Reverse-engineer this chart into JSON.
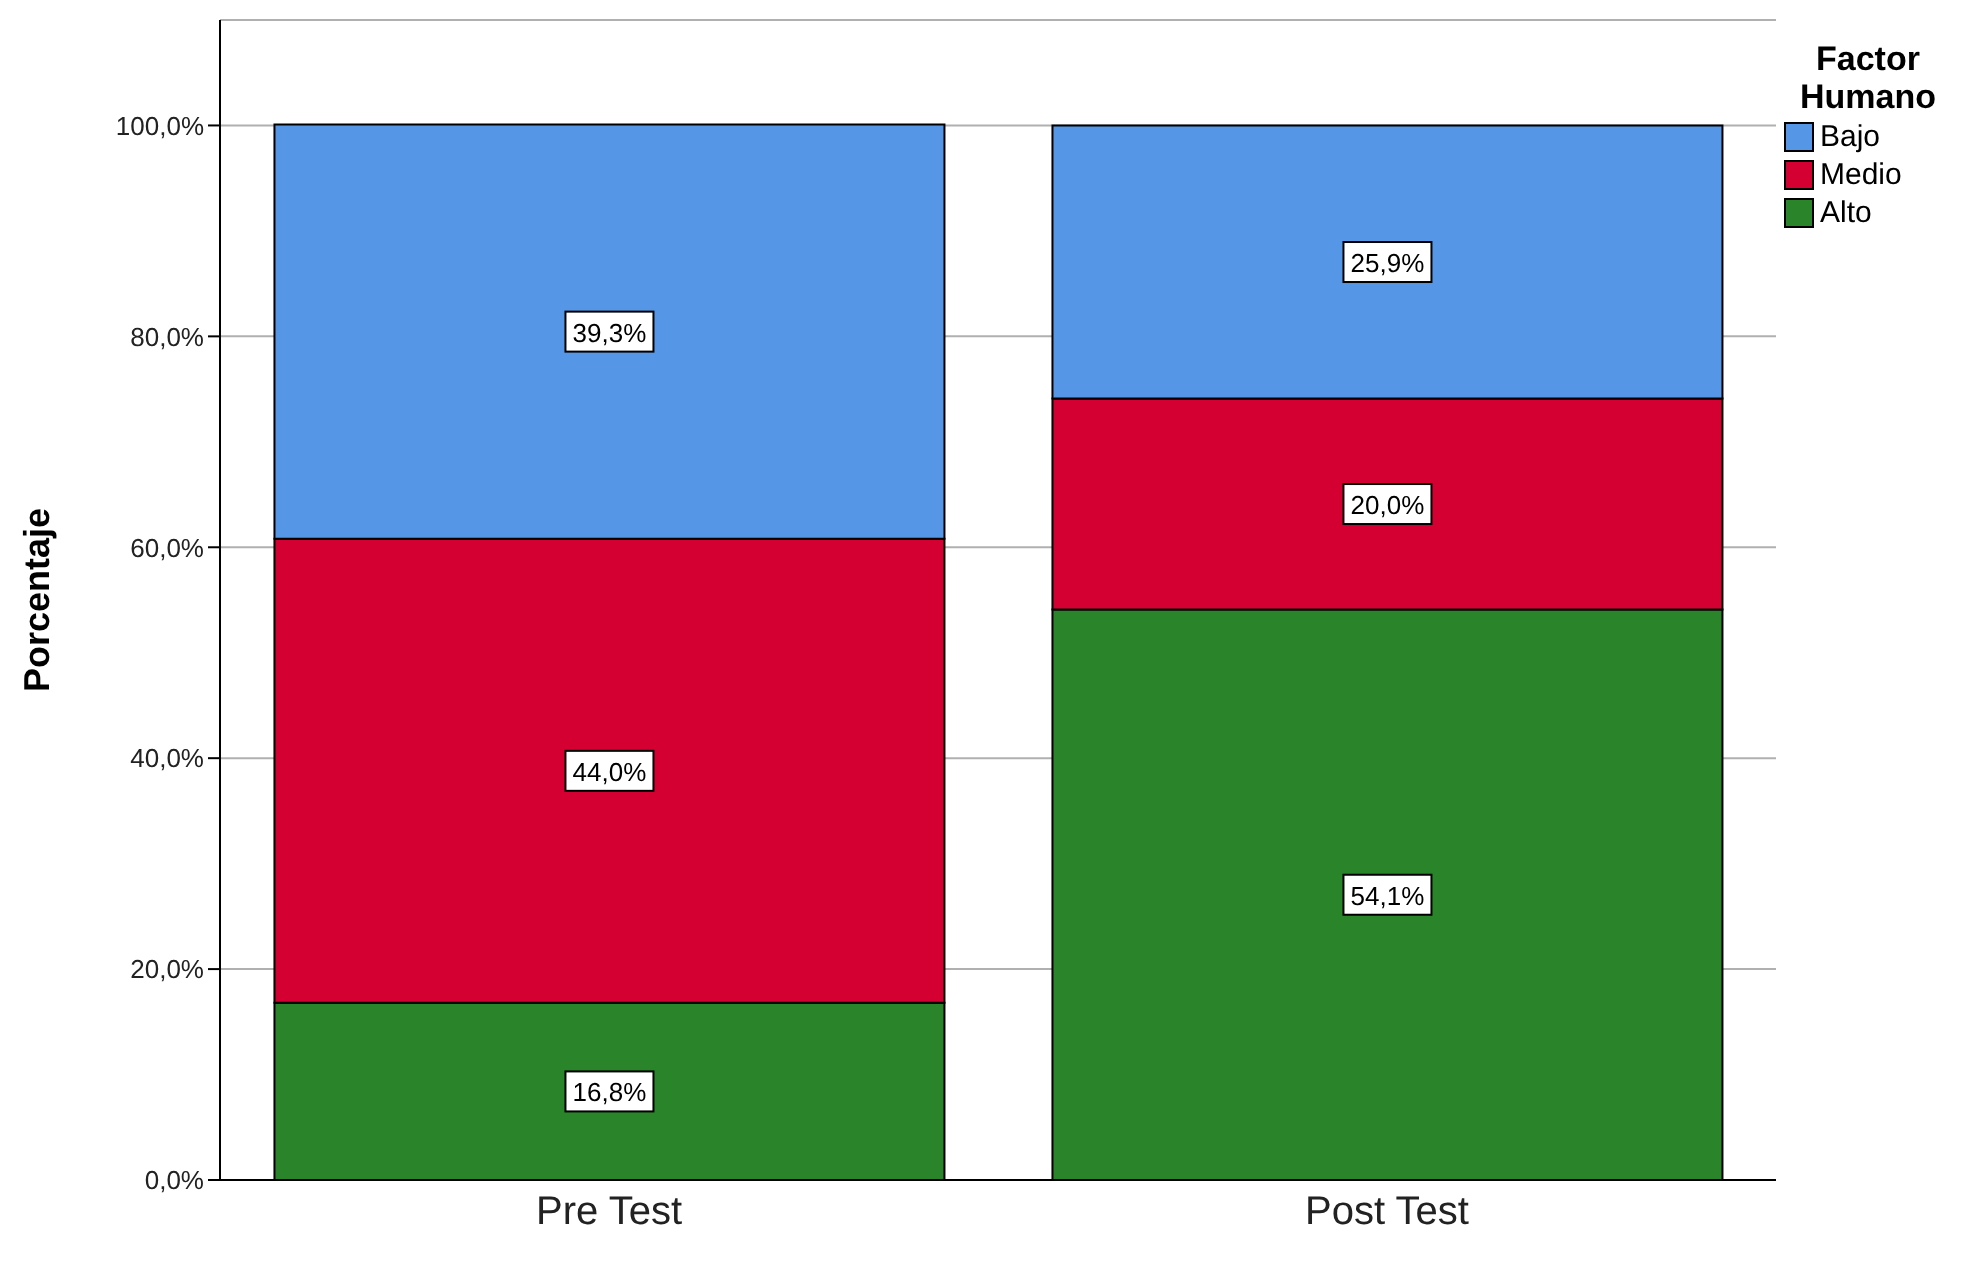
{
  "chart_data": {
    "type": "bar",
    "stacked": true,
    "ylabel": "Porcentaje",
    "legend_title": "Factor Humano",
    "legend": "top right",
    "grid": "y",
    "categories": [
      "Pre Test",
      "Post Test"
    ],
    "ylim": [
      0,
      110
    ],
    "yticks": [
      {
        "value": 0,
        "label": "0,0%"
      },
      {
        "value": 20,
        "label": "20,0%"
      },
      {
        "value": 40,
        "label": "40,0%"
      },
      {
        "value": 60,
        "label": "60,0%"
      },
      {
        "value": 80,
        "label": "80,0%"
      },
      {
        "value": 100,
        "label": "100,0%"
      }
    ],
    "series": [
      {
        "name": "Alto",
        "color": "#2a852a",
        "values": [
          16.8,
          54.1
        ],
        "value_labels": [
          "16,8%",
          "54,1%"
        ]
      },
      {
        "name": "Medio",
        "color": "#d50032",
        "values": [
          44.0,
          20.0
        ],
        "value_labels": [
          "44,0%",
          "20,0%"
        ]
      },
      {
        "name": "Bajo",
        "color": "#5597e6",
        "values": [
          39.3,
          25.9
        ],
        "value_labels": [
          "39,3%",
          "25,9%"
        ]
      }
    ]
  }
}
